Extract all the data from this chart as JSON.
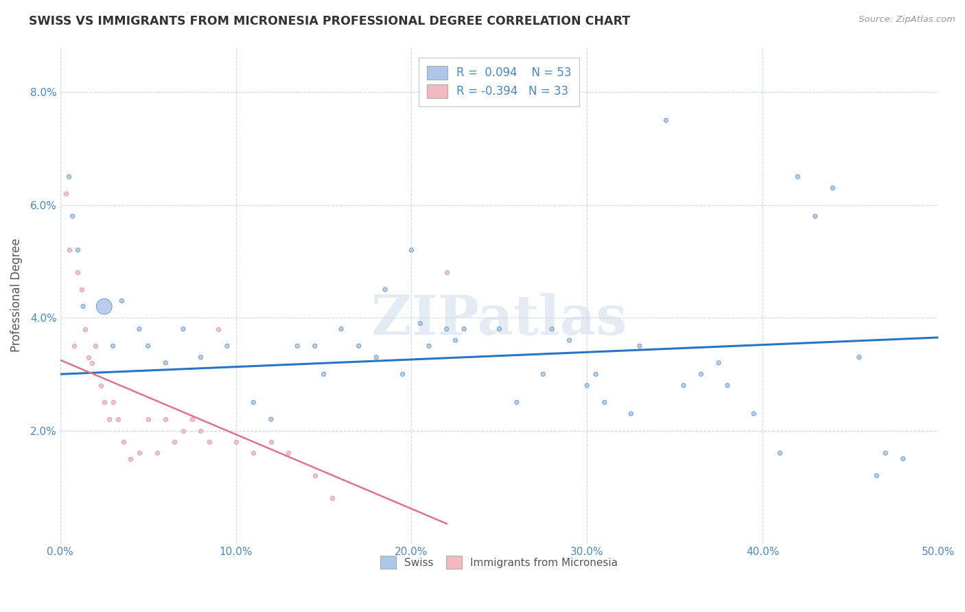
{
  "title": "SWISS VS IMMIGRANTS FROM MICRONESIA PROFESSIONAL DEGREE CORRELATION CHART",
  "source_text": "Source: ZipAtlas.com",
  "ylabel": "Professional Degree",
  "xlim": [
    0,
    50
  ],
  "ylim": [
    0,
    8.8
  ],
  "yticks": [
    2,
    4,
    6,
    8
  ],
  "xticks": [
    0,
    10,
    20,
    30,
    40,
    50
  ],
  "xtick_labels": [
    "0.0%",
    "10.0%",
    "20.0%",
    "30.0%",
    "40.0%",
    "50.0%"
  ],
  "ytick_labels": [
    "2.0%",
    "4.0%",
    "6.0%",
    "8.0%"
  ],
  "legend_r1": "R =  0.094",
  "legend_n1": "N = 53",
  "legend_r2": "R = -0.394",
  "legend_n2": "N = 33",
  "watermark": "ZIPatlas",
  "blue_color": "#aec6e8",
  "pink_color": "#f4b8c1",
  "line_blue": "#2874c8",
  "line_pink": "#e07090",
  "tick_color": "#4488cc",
  "label_color": "#555555",
  "background_color": "#ffffff",
  "grid_color": "#c8d8e8",
  "swiss_x": [
    0.5,
    0.7,
    1.0,
    1.3,
    2.5,
    3.0,
    3.5,
    4.5,
    5.0,
    6.0,
    7.0,
    8.0,
    9.5,
    11.0,
    12.0,
    13.5,
    14.5,
    15.0,
    16.0,
    17.0,
    18.0,
    18.5,
    19.5,
    20.5,
    21.0,
    22.0,
    23.0,
    25.0,
    26.0,
    27.5,
    28.0,
    29.0,
    30.0,
    31.0,
    32.5,
    33.0,
    34.5,
    36.5,
    37.5,
    38.0,
    39.5,
    41.0,
    43.0,
    44.0,
    45.5,
    47.0,
    48.0,
    20.0,
    22.5,
    30.5,
    35.5,
    42.0,
    46.5
  ],
  "swiss_y": [
    6.5,
    5.8,
    5.2,
    4.2,
    4.2,
    3.5,
    4.3,
    3.8,
    3.5,
    3.2,
    3.8,
    3.3,
    3.5,
    2.5,
    2.2,
    3.5,
    3.5,
    3.0,
    3.8,
    3.5,
    3.3,
    4.5,
    3.0,
    3.9,
    3.5,
    3.8,
    3.8,
    3.8,
    2.5,
    3.0,
    3.8,
    3.6,
    2.8,
    2.5,
    2.3,
    3.5,
    7.5,
    3.0,
    3.2,
    2.8,
    2.3,
    1.6,
    5.8,
    6.3,
    3.3,
    1.6,
    1.5,
    5.2,
    3.6,
    3.0,
    2.8,
    6.5,
    1.2
  ],
  "swiss_size": [
    20,
    20,
    20,
    20,
    270,
    20,
    20,
    20,
    20,
    20,
    20,
    20,
    20,
    20,
    20,
    20,
    20,
    20,
    20,
    20,
    20,
    20,
    20,
    20,
    20,
    20,
    20,
    20,
    20,
    20,
    20,
    20,
    20,
    20,
    20,
    20,
    20,
    20,
    20,
    20,
    20,
    20,
    20,
    20,
    20,
    20,
    20,
    20,
    20,
    20,
    20,
    20,
    20
  ],
  "micro_x": [
    0.3,
    0.5,
    0.8,
    1.0,
    1.2,
    1.4,
    1.6,
    1.8,
    2.0,
    2.3,
    2.5,
    2.8,
    3.0,
    3.3,
    3.6,
    4.0,
    4.5,
    5.0,
    5.5,
    6.0,
    6.5,
    7.0,
    7.5,
    8.0,
    8.5,
    9.0,
    10.0,
    11.0,
    12.0,
    13.0,
    14.5,
    15.5,
    22.0
  ],
  "micro_y": [
    6.2,
    5.2,
    3.5,
    4.8,
    4.5,
    3.8,
    3.3,
    3.2,
    3.5,
    2.8,
    2.5,
    2.2,
    2.5,
    2.2,
    1.8,
    1.5,
    1.6,
    2.2,
    1.6,
    2.2,
    1.8,
    2.0,
    2.2,
    2.0,
    1.8,
    3.8,
    1.8,
    1.6,
    1.8,
    1.6,
    1.2,
    0.8,
    4.8
  ],
  "swiss_line_x": [
    0,
    50
  ],
  "swiss_line_y": [
    3.0,
    3.65
  ],
  "micro_line_x": [
    0,
    22
  ],
  "micro_line_y": [
    3.25,
    0.35
  ]
}
